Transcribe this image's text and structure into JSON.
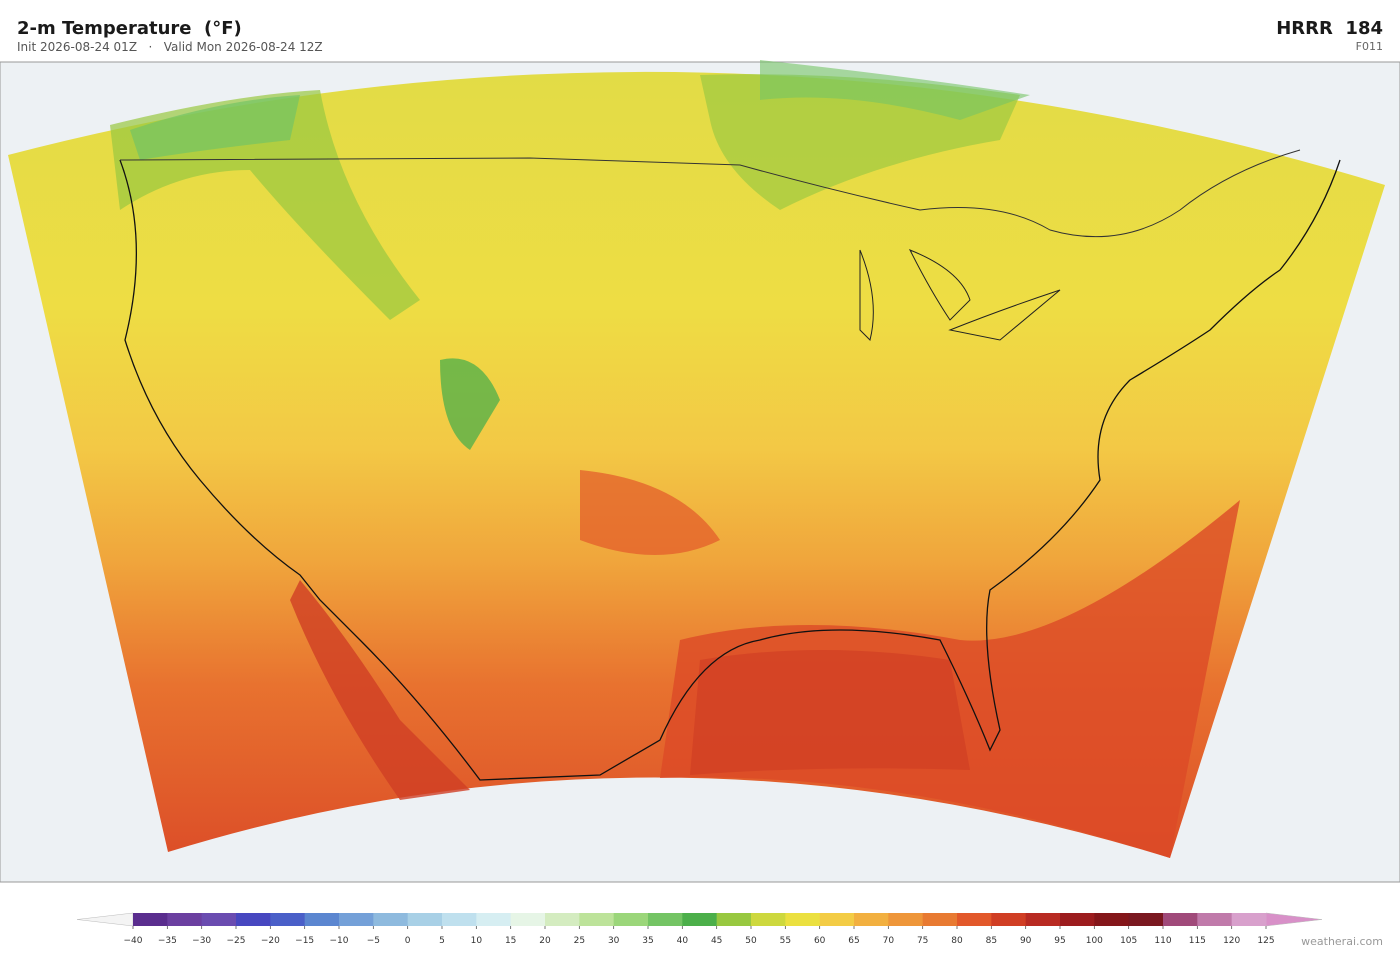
{
  "header": {
    "title": "2-m Temperature  (°F)",
    "subtitle": "Init 2026-08-24 01Z   ·   Valid Mon 2026-08-24 12Z",
    "model": "HRRR  184",
    "forecast_hour": "F011"
  },
  "colorbar": {
    "ticks": [
      {
        "value": -40,
        "label": "−40"
      },
      {
        "value": -35,
        "label": "−35"
      },
      {
        "value": -30,
        "label": "−30"
      },
      {
        "value": -25,
        "label": "−25"
      },
      {
        "value": -20,
        "label": "−20"
      },
      {
        "value": -15,
        "label": "−15"
      },
      {
        "value": -10,
        "label": "−10"
      },
      {
        "value": -5,
        "label": "−5"
      },
      0,
      5,
      10,
      15,
      20,
      25,
      30,
      35,
      40,
      45,
      50,
      55,
      60,
      65,
      70,
      75,
      80,
      85,
      90,
      95,
      100,
      105,
      110,
      115,
      120,
      125
    ],
    "colors": [
      "#5a2d8e",
      "#6b3fa0",
      "#6a4cb0",
      "#4747c0",
      "#4a5fc8",
      "#5b86d0",
      "#74a0d8",
      "#8ebade",
      "#a8d0e6",
      "#bfe0ee",
      "#d6eef2",
      "#e6f5e6",
      "#d4ecc0",
      "#bde39a",
      "#9bd67a",
      "#74c464",
      "#4caf4a",
      "#98c840",
      "#cdd83e",
      "#ebe040",
      "#f3cc45",
      "#f2b040",
      "#ee963a",
      "#e87a32",
      "#e2582a",
      "#d03e24",
      "#b82a22",
      "#9c1c1e",
      "#84161a",
      "#7a1820",
      "#a04a7a",
      "#c07aaa",
      "#d8a0cc"
    ],
    "extend_colors": [
      "#f4f4f4",
      "#d890c8"
    ]
  },
  "footer": {
    "credit": "weatherai.com"
  }
}
